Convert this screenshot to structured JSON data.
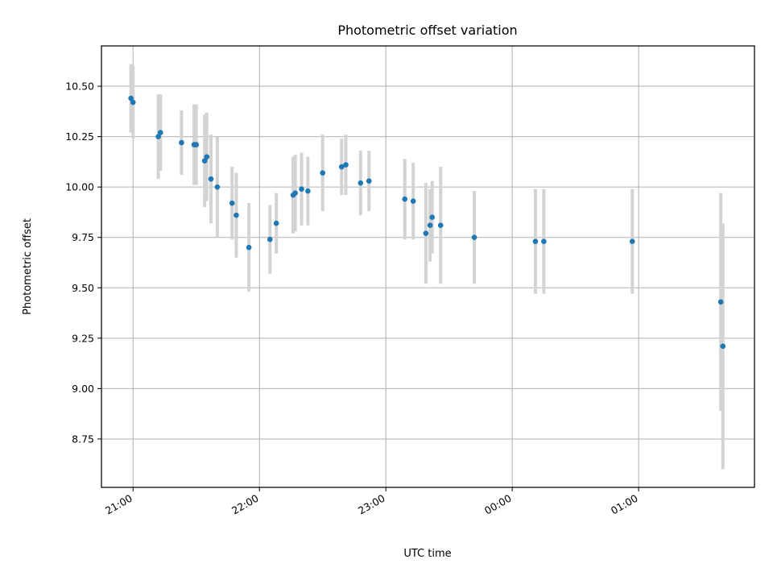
{
  "chart_data": {
    "type": "scatter",
    "title": "Photometric offset variation",
    "xlabel": "UTC time",
    "ylabel": "Photometric offset",
    "x_is_time": true,
    "xlim": [
      "20:45",
      "01:55"
    ],
    "ylim": [
      8.51,
      10.7
    ],
    "grid": true,
    "x_ticks": [
      "21:00",
      "22:00",
      "23:00",
      "00:00",
      "01:00"
    ],
    "y_ticks": [
      "8.75",
      "9.00",
      "9.25",
      "9.50",
      "9.75",
      "10.00",
      "10.25",
      "10.50"
    ],
    "colors": {
      "point": "#1f77b4",
      "errorbar": "#d3d3d3",
      "grid": "#b0b0b0"
    },
    "points": [
      {
        "t": "20:59",
        "y": 10.44,
        "err": 0.17
      },
      {
        "t": "21:00",
        "y": 10.42,
        "err": 0.18
      },
      {
        "t": "21:12",
        "y": 10.25,
        "err": 0.21
      },
      {
        "t": "21:13",
        "y": 10.27,
        "err": 0.19
      },
      {
        "t": "21:23",
        "y": 10.22,
        "err": 0.16
      },
      {
        "t": "21:29",
        "y": 10.21,
        "err": 0.2
      },
      {
        "t": "21:30",
        "y": 10.21,
        "err": 0.2
      },
      {
        "t": "21:34",
        "y": 10.13,
        "err": 0.23
      },
      {
        "t": "21:35",
        "y": 10.15,
        "err": 0.22
      },
      {
        "t": "21:37",
        "y": 10.04,
        "err": 0.22
      },
      {
        "t": "21:40",
        "y": 10.0,
        "err": 0.25
      },
      {
        "t": "21:47",
        "y": 9.92,
        "err": 0.18
      },
      {
        "t": "21:49",
        "y": 9.86,
        "err": 0.21
      },
      {
        "t": "21:55",
        "y": 9.7,
        "err": 0.22
      },
      {
        "t": "22:05",
        "y": 9.74,
        "err": 0.17
      },
      {
        "t": "22:08",
        "y": 9.82,
        "err": 0.15
      },
      {
        "t": "22:16",
        "y": 9.96,
        "err": 0.19
      },
      {
        "t": "22:17",
        "y": 9.97,
        "err": 0.19
      },
      {
        "t": "22:20",
        "y": 9.99,
        "err": 0.18
      },
      {
        "t": "22:23",
        "y": 9.98,
        "err": 0.17
      },
      {
        "t": "22:30",
        "y": 10.07,
        "err": 0.19
      },
      {
        "t": "22:39",
        "y": 10.1,
        "err": 0.14
      },
      {
        "t": "22:41",
        "y": 10.11,
        "err": 0.15
      },
      {
        "t": "22:48",
        "y": 10.02,
        "err": 0.16
      },
      {
        "t": "22:52",
        "y": 10.03,
        "err": 0.15
      },
      {
        "t": "23:09",
        "y": 9.94,
        "err": 0.2
      },
      {
        "t": "23:13",
        "y": 9.93,
        "err": 0.19
      },
      {
        "t": "23:19",
        "y": 9.77,
        "err": 0.25
      },
      {
        "t": "23:21",
        "y": 9.81,
        "err": 0.18
      },
      {
        "t": "23:22",
        "y": 9.85,
        "err": 0.18
      },
      {
        "t": "23:26",
        "y": 9.81,
        "err": 0.29
      },
      {
        "t": "23:42",
        "y": 9.75,
        "err": 0.23
      },
      {
        "t": "00:11",
        "y": 9.73,
        "err": 0.26
      },
      {
        "t": "00:15",
        "y": 9.73,
        "err": 0.26
      },
      {
        "t": "00:57",
        "y": 9.73,
        "err": 0.26
      },
      {
        "t": "01:39",
        "y": 9.43,
        "err": 0.54
      },
      {
        "t": "01:40",
        "y": 9.21,
        "err": 0.61
      }
    ]
  }
}
